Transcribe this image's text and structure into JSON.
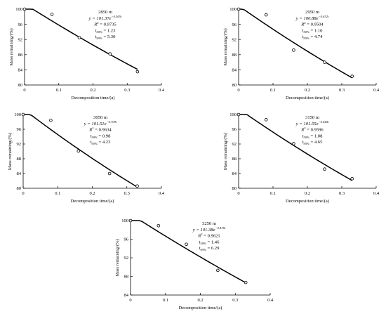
{
  "chart_data": [
    {
      "type": "scatter",
      "title": "2850 m",
      "equation": {
        "base": "y = 101.37e",
        "exp": "−0.565t"
      },
      "r2": {
        "base": "R",
        "sup": "2",
        "rest": " = 0.9735"
      },
      "t50": {
        "base": "t",
        "sub": "50%",
        "rest": " = 1.23"
      },
      "t95": {
        "base": "t",
        "sub": "95%",
        "rest": " = 5.30"
      },
      "xlabel": "Decomposition time/(a)",
      "ylabel": "Mass remaining/(%)",
      "xlim": [
        0,
        0.4
      ],
      "ylim": [
        80,
        100
      ],
      "x_ticks": [
        "0",
        "0.1",
        "0.2",
        "0.3",
        "0.4"
      ],
      "y_ticks": [
        "80",
        "84",
        "88",
        "92",
        "96",
        "100"
      ],
      "fit": {
        "a": 101.37,
        "k": 0.565
      },
      "points": {
        "x": [
          0,
          0.08,
          0.16,
          0.25,
          0.33
        ],
        "y": [
          100,
          98.6,
          92.5,
          88.2,
          83.5
        ]
      }
    },
    {
      "type": "scatter",
      "title": "2950 m",
      "equation": {
        "base": "y = 100.88e",
        "exp": "−0.632t"
      },
      "r2": {
        "base": "R",
        "sup": "2",
        "rest": " = 0.9504"
      },
      "t50": {
        "base": "t",
        "sub": "50%",
        "rest": " = 1.10"
      },
      "t95": {
        "base": "t",
        "sub": "95%",
        "rest": " = 4.74"
      },
      "xlabel": "Decomposition time/(a)",
      "ylabel": "Mass remaining/(%)",
      "xlim": [
        0,
        0.4
      ],
      "ylim": [
        80,
        100
      ],
      "x_ticks": [
        "0",
        "0.1",
        "0.2",
        "0.3",
        "0.4"
      ],
      "y_ticks": [
        "80",
        "84",
        "88",
        "92",
        "96",
        "100"
      ],
      "fit": {
        "a": 100.88,
        "k": 0.632
      },
      "points": {
        "x": [
          0,
          0.08,
          0.16,
          0.25,
          0.33
        ],
        "y": [
          100,
          98.5,
          89.2,
          86.0,
          82.3
        ]
      }
    },
    {
      "type": "scatter",
      "title": "3050 m",
      "equation": {
        "base": "y = 101.51e",
        "exp": "−0.709t"
      },
      "r2": {
        "base": "R",
        "sup": "2",
        "rest": " = 0.9634"
      },
      "t50": {
        "base": "t",
        "sub": "50%",
        "rest": " = 0.98"
      },
      "t95": {
        "base": "t",
        "sub": "95%",
        "rest": " = 4.23"
      },
      "xlabel": "Decomposition time/(a)",
      "ylabel": "Mass remaining/(%)",
      "xlim": [
        0,
        0.4
      ],
      "ylim": [
        80,
        100
      ],
      "x_ticks": [
        "0",
        "0.1",
        "0.2",
        "0.3",
        "0.4"
      ],
      "y_ticks": [
        "80",
        "84",
        "88",
        "92",
        "96",
        "100"
      ],
      "fit": {
        "a": 101.51,
        "k": 0.709
      },
      "points": {
        "x": [
          0,
          0.08,
          0.16,
          0.25,
          0.33
        ],
        "y": [
          100,
          98.4,
          90.1,
          84.0,
          80.6
        ]
      }
    },
    {
      "type": "scatter",
      "title": "3150 m",
      "equation": {
        "base": "y = 101.55e",
        "exp": "−0.644t"
      },
      "r2": {
        "base": "R",
        "sup": "2",
        "rest": " = 0.9596"
      },
      "t50": {
        "base": "t",
        "sub": "50%",
        "rest": " = 1.08"
      },
      "t95": {
        "base": "t",
        "sub": "95%",
        "rest": " = 4.65"
      },
      "xlabel": "Decomposition time/(a)",
      "ylabel": "Mass remaining/(%)",
      "xlim": [
        0,
        0.4
      ],
      "ylim": [
        80,
        100
      ],
      "x_ticks": [
        "0",
        "0.1",
        "0.2",
        "0.3",
        "0.4"
      ],
      "y_ticks": [
        "80",
        "84",
        "88",
        "92",
        "96",
        "100"
      ],
      "fit": {
        "a": 101.55,
        "k": 0.644
      },
      "points": {
        "x": [
          0,
          0.08,
          0.16,
          0.25,
          0.33
        ],
        "y": [
          100,
          98.6,
          92.1,
          85.2,
          82.6
        ]
      }
    },
    {
      "type": "scatter",
      "title": "3250 m",
      "equation": {
        "base": "y = 101.38e",
        "exp": "−0.476t"
      },
      "r2": {
        "base": "R",
        "sup": "2",
        "rest": " = 0.9621"
      },
      "t50": {
        "base": "t",
        "sub": "50%",
        "rest": " = 1.46"
      },
      "t95": {
        "base": "t",
        "sub": "95%",
        "rest": " = 6.29"
      },
      "xlabel": "Decomposition time/(a)",
      "ylabel": "Mass remaining/(%)",
      "xlim": [
        0,
        0.4
      ],
      "ylim": [
        84,
        100
      ],
      "x_ticks": [
        "0",
        "0.1",
        "0.2",
        "0.3",
        "0.4"
      ],
      "y_ticks": [
        "84",
        "88",
        "92",
        "96",
        "100"
      ],
      "fit": {
        "a": 101.38,
        "k": 0.476
      },
      "points": {
        "x": [
          0,
          0.08,
          0.16,
          0.25,
          0.33
        ],
        "y": [
          100,
          98.9,
          94.9,
          89.3,
          86.7
        ]
      }
    }
  ]
}
